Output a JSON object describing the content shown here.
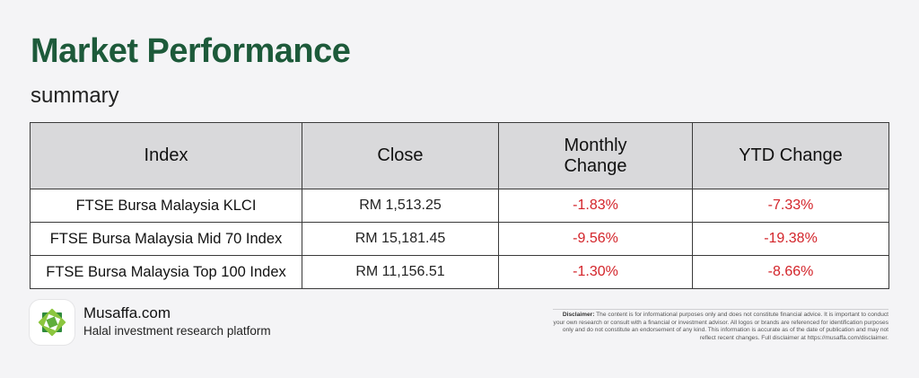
{
  "header": {
    "title": "Market Performance",
    "subtitle": "summary"
  },
  "table": {
    "columns": [
      "Index",
      "Close",
      "Monthly Change",
      "YTD Change"
    ],
    "rows": [
      {
        "index": "FTSE Bursa Malaysia KLCI",
        "close": "RM 1,513.25",
        "monthly": "-1.83%",
        "ytd": "-7.33%"
      },
      {
        "index": "FTSE Bursa Malaysia Mid 70 Index",
        "close": "RM 15,181.45",
        "monthly": "-9.56%",
        "ytd": "-19.38%"
      },
      {
        "index": "FTSE Bursa Malaysia Top 100 Index",
        "close": "RM 11,156.51",
        "monthly": "-1.30%",
        "ytd": "-8.66%"
      }
    ]
  },
  "footer": {
    "brand_name": "Musaffa.com",
    "brand_tagline": "Halal investment research platform",
    "disclaimer_label": "Disclaimer:",
    "disclaimer_text": "The content is for informational purposes only and does not constitute financial advice. It is important to conduct your own research or consult with a financial or investment advisor. All logos or brands are referenced for identification purposes only and do not constitute an endorsement of any kind. This information is accurate as of the date of publication and may not reflect recent changes. Full disclaimer at https://musaffa.com/disclaimer."
  },
  "colors": {
    "title": "#1d5a3a",
    "negative": "#d3242a",
    "header_bg": "#d9d9db",
    "logo_green_dark": "#2f8a3c",
    "logo_green_light": "#8cc63f"
  },
  "icons": {
    "logo": "musaffa-star-logo-icon"
  }
}
